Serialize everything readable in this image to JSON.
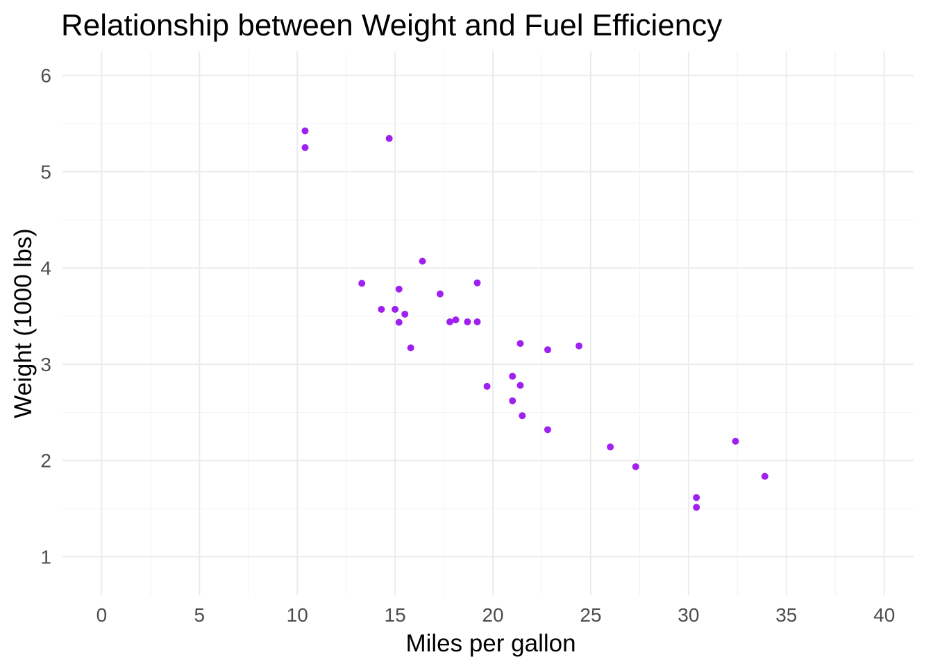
{
  "chart_data": {
    "type": "scatter",
    "title": "Relationship between Weight and Fuel Efficiency",
    "xlabel": "Miles per gallon",
    "ylabel": "Weight (1000 lbs)",
    "xlim": [
      -2,
      41.5
    ],
    "ylim": [
      0.6,
      6.25
    ],
    "x_ticks": [
      0,
      5,
      10,
      15,
      20,
      25,
      30,
      35,
      40
    ],
    "y_ticks": [
      1,
      2,
      3,
      4,
      5,
      6
    ],
    "grid": true,
    "point_color": "#a020f0",
    "points": [
      {
        "x": 21.0,
        "y": 2.62
      },
      {
        "x": 21.0,
        "y": 2.875
      },
      {
        "x": 22.8,
        "y": 2.32
      },
      {
        "x": 21.4,
        "y": 3.215
      },
      {
        "x": 18.7,
        "y": 3.44
      },
      {
        "x": 18.1,
        "y": 3.46
      },
      {
        "x": 14.3,
        "y": 3.57
      },
      {
        "x": 24.4,
        "y": 3.19
      },
      {
        "x": 22.8,
        "y": 3.15
      },
      {
        "x": 19.2,
        "y": 3.44
      },
      {
        "x": 17.8,
        "y": 3.44
      },
      {
        "x": 16.4,
        "y": 4.07
      },
      {
        "x": 17.3,
        "y": 3.73
      },
      {
        "x": 15.2,
        "y": 3.78
      },
      {
        "x": 10.4,
        "y": 5.25
      },
      {
        "x": 10.4,
        "y": 5.424
      },
      {
        "x": 14.7,
        "y": 5.345
      },
      {
        "x": 32.4,
        "y": 2.2
      },
      {
        "x": 30.4,
        "y": 1.615
      },
      {
        "x": 33.9,
        "y": 1.835
      },
      {
        "x": 21.5,
        "y": 2.465
      },
      {
        "x": 15.5,
        "y": 3.52
      },
      {
        "x": 15.2,
        "y": 3.435
      },
      {
        "x": 13.3,
        "y": 3.84
      },
      {
        "x": 19.2,
        "y": 3.845
      },
      {
        "x": 27.3,
        "y": 1.935
      },
      {
        "x": 26.0,
        "y": 2.14
      },
      {
        "x": 30.4,
        "y": 1.513
      },
      {
        "x": 15.8,
        "y": 3.17
      },
      {
        "x": 19.7,
        "y": 2.77
      },
      {
        "x": 15.0,
        "y": 3.57
      },
      {
        "x": 21.4,
        "y": 2.78
      }
    ]
  }
}
